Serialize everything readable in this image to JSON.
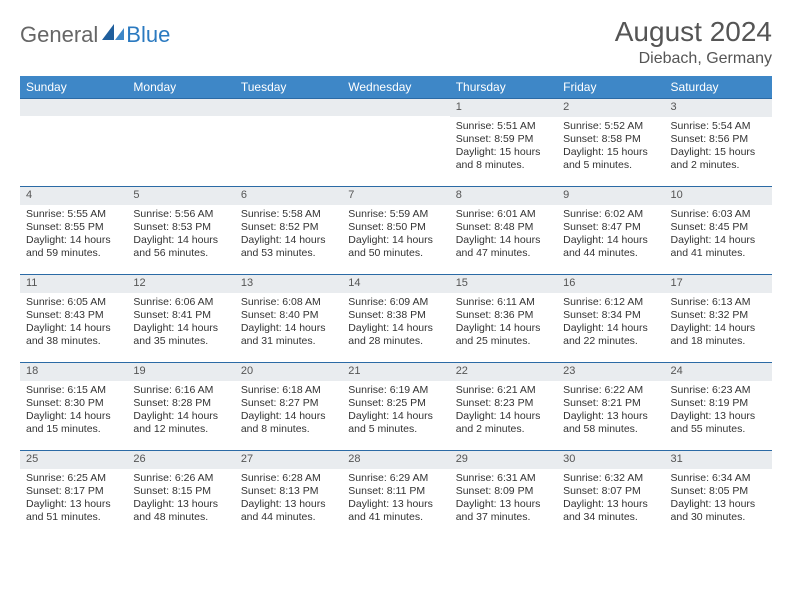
{
  "brand": {
    "part1": "General",
    "part2": "Blue"
  },
  "month_title": "August 2024",
  "location": "Diebach, Germany",
  "header_bg": "#3e87c7",
  "daynum_bg": "#e9ecef",
  "border_color": "#2b6aa5",
  "days_of_week": [
    "Sunday",
    "Monday",
    "Tuesday",
    "Wednesday",
    "Thursday",
    "Friday",
    "Saturday"
  ],
  "weeks": [
    [
      null,
      null,
      null,
      null,
      {
        "n": "1",
        "sr": "Sunrise: 5:51 AM",
        "ss": "Sunset: 8:59 PM",
        "dl1": "Daylight: 15 hours",
        "dl2": "and 8 minutes."
      },
      {
        "n": "2",
        "sr": "Sunrise: 5:52 AM",
        "ss": "Sunset: 8:58 PM",
        "dl1": "Daylight: 15 hours",
        "dl2": "and 5 minutes."
      },
      {
        "n": "3",
        "sr": "Sunrise: 5:54 AM",
        "ss": "Sunset: 8:56 PM",
        "dl1": "Daylight: 15 hours",
        "dl2": "and 2 minutes."
      }
    ],
    [
      {
        "n": "4",
        "sr": "Sunrise: 5:55 AM",
        "ss": "Sunset: 8:55 PM",
        "dl1": "Daylight: 14 hours",
        "dl2": "and 59 minutes."
      },
      {
        "n": "5",
        "sr": "Sunrise: 5:56 AM",
        "ss": "Sunset: 8:53 PM",
        "dl1": "Daylight: 14 hours",
        "dl2": "and 56 minutes."
      },
      {
        "n": "6",
        "sr": "Sunrise: 5:58 AM",
        "ss": "Sunset: 8:52 PM",
        "dl1": "Daylight: 14 hours",
        "dl2": "and 53 minutes."
      },
      {
        "n": "7",
        "sr": "Sunrise: 5:59 AM",
        "ss": "Sunset: 8:50 PM",
        "dl1": "Daylight: 14 hours",
        "dl2": "and 50 minutes."
      },
      {
        "n": "8",
        "sr": "Sunrise: 6:01 AM",
        "ss": "Sunset: 8:48 PM",
        "dl1": "Daylight: 14 hours",
        "dl2": "and 47 minutes."
      },
      {
        "n": "9",
        "sr": "Sunrise: 6:02 AM",
        "ss": "Sunset: 8:47 PM",
        "dl1": "Daylight: 14 hours",
        "dl2": "and 44 minutes."
      },
      {
        "n": "10",
        "sr": "Sunrise: 6:03 AM",
        "ss": "Sunset: 8:45 PM",
        "dl1": "Daylight: 14 hours",
        "dl2": "and 41 minutes."
      }
    ],
    [
      {
        "n": "11",
        "sr": "Sunrise: 6:05 AM",
        "ss": "Sunset: 8:43 PM",
        "dl1": "Daylight: 14 hours",
        "dl2": "and 38 minutes."
      },
      {
        "n": "12",
        "sr": "Sunrise: 6:06 AM",
        "ss": "Sunset: 8:41 PM",
        "dl1": "Daylight: 14 hours",
        "dl2": "and 35 minutes."
      },
      {
        "n": "13",
        "sr": "Sunrise: 6:08 AM",
        "ss": "Sunset: 8:40 PM",
        "dl1": "Daylight: 14 hours",
        "dl2": "and 31 minutes."
      },
      {
        "n": "14",
        "sr": "Sunrise: 6:09 AM",
        "ss": "Sunset: 8:38 PM",
        "dl1": "Daylight: 14 hours",
        "dl2": "and 28 minutes."
      },
      {
        "n": "15",
        "sr": "Sunrise: 6:11 AM",
        "ss": "Sunset: 8:36 PM",
        "dl1": "Daylight: 14 hours",
        "dl2": "and 25 minutes."
      },
      {
        "n": "16",
        "sr": "Sunrise: 6:12 AM",
        "ss": "Sunset: 8:34 PM",
        "dl1": "Daylight: 14 hours",
        "dl2": "and 22 minutes."
      },
      {
        "n": "17",
        "sr": "Sunrise: 6:13 AM",
        "ss": "Sunset: 8:32 PM",
        "dl1": "Daylight: 14 hours",
        "dl2": "and 18 minutes."
      }
    ],
    [
      {
        "n": "18",
        "sr": "Sunrise: 6:15 AM",
        "ss": "Sunset: 8:30 PM",
        "dl1": "Daylight: 14 hours",
        "dl2": "and 15 minutes."
      },
      {
        "n": "19",
        "sr": "Sunrise: 6:16 AM",
        "ss": "Sunset: 8:28 PM",
        "dl1": "Daylight: 14 hours",
        "dl2": "and 12 minutes."
      },
      {
        "n": "20",
        "sr": "Sunrise: 6:18 AM",
        "ss": "Sunset: 8:27 PM",
        "dl1": "Daylight: 14 hours",
        "dl2": "and 8 minutes."
      },
      {
        "n": "21",
        "sr": "Sunrise: 6:19 AM",
        "ss": "Sunset: 8:25 PM",
        "dl1": "Daylight: 14 hours",
        "dl2": "and 5 minutes."
      },
      {
        "n": "22",
        "sr": "Sunrise: 6:21 AM",
        "ss": "Sunset: 8:23 PM",
        "dl1": "Daylight: 14 hours",
        "dl2": "and 2 minutes."
      },
      {
        "n": "23",
        "sr": "Sunrise: 6:22 AM",
        "ss": "Sunset: 8:21 PM",
        "dl1": "Daylight: 13 hours",
        "dl2": "and 58 minutes."
      },
      {
        "n": "24",
        "sr": "Sunrise: 6:23 AM",
        "ss": "Sunset: 8:19 PM",
        "dl1": "Daylight: 13 hours",
        "dl2": "and 55 minutes."
      }
    ],
    [
      {
        "n": "25",
        "sr": "Sunrise: 6:25 AM",
        "ss": "Sunset: 8:17 PM",
        "dl1": "Daylight: 13 hours",
        "dl2": "and 51 minutes."
      },
      {
        "n": "26",
        "sr": "Sunrise: 6:26 AM",
        "ss": "Sunset: 8:15 PM",
        "dl1": "Daylight: 13 hours",
        "dl2": "and 48 minutes."
      },
      {
        "n": "27",
        "sr": "Sunrise: 6:28 AM",
        "ss": "Sunset: 8:13 PM",
        "dl1": "Daylight: 13 hours",
        "dl2": "and 44 minutes."
      },
      {
        "n": "28",
        "sr": "Sunrise: 6:29 AM",
        "ss": "Sunset: 8:11 PM",
        "dl1": "Daylight: 13 hours",
        "dl2": "and 41 minutes."
      },
      {
        "n": "29",
        "sr": "Sunrise: 6:31 AM",
        "ss": "Sunset: 8:09 PM",
        "dl1": "Daylight: 13 hours",
        "dl2": "and 37 minutes."
      },
      {
        "n": "30",
        "sr": "Sunrise: 6:32 AM",
        "ss": "Sunset: 8:07 PM",
        "dl1": "Daylight: 13 hours",
        "dl2": "and 34 minutes."
      },
      {
        "n": "31",
        "sr": "Sunrise: 6:34 AM",
        "ss": "Sunset: 8:05 PM",
        "dl1": "Daylight: 13 hours",
        "dl2": "and 30 minutes."
      }
    ]
  ]
}
